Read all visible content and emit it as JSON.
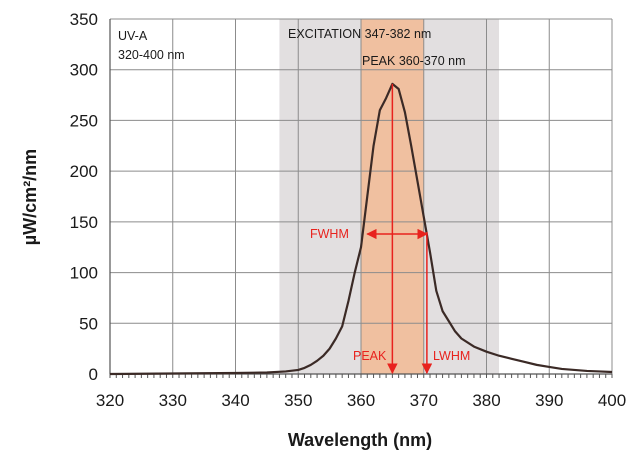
{
  "chart_data": {
    "type": "line",
    "xlabel": "Wavelength (nm)",
    "ylabel": "µW/cm²/nm",
    "xlim": [
      320,
      400
    ],
    "ylim": [
      0,
      350
    ],
    "x_ticks": [
      "320",
      "330",
      "340",
      "350",
      "360",
      "370",
      "380",
      "390",
      "400"
    ],
    "y_ticks": [
      "0",
      "50",
      "100",
      "150",
      "200",
      "250",
      "300",
      "350"
    ],
    "grid": true,
    "x_minor_ticks": true,
    "series": [
      {
        "color": "#3b2a26",
        "x": [
          320,
          330,
          340,
          345,
          348,
          350,
          351,
          352,
          353,
          354,
          355,
          356,
          357,
          358,
          359,
          360,
          361,
          362,
          363,
          364,
          365,
          366,
          367,
          368,
          369,
          370,
          371,
          372,
          373,
          374,
          375,
          376,
          378,
          380,
          382,
          384,
          386,
          388,
          390,
          392,
          394,
          396,
          398,
          400
        ],
        "y": [
          0,
          0.5,
          1,
          1.5,
          2.5,
          4,
          6,
          9,
          13,
          18,
          25,
          35,
          47,
          72,
          100,
          125,
          175,
          225,
          260,
          272,
          286,
          281,
          258,
          225,
          190,
          155,
          120,
          82,
          62,
          52,
          42,
          35,
          27,
          22,
          18,
          15,
          12,
          9,
          7,
          5,
          4,
          3,
          2.5,
          2
        ]
      }
    ],
    "bands": [
      {
        "from": 347,
        "to": 382,
        "color": "#e2dfe0",
        "label": "EXCITATION  347-382 nm"
      },
      {
        "from": 360,
        "to": 370,
        "color": "#f0c0a0",
        "label": "PEAK  360-370 nm"
      }
    ],
    "corner_note": {
      "line1": "UV-A",
      "line2": "320-400 nm"
    },
    "annotations": {
      "fwhm": {
        "label": "FWHM",
        "x_from": 361,
        "x_to": 370.5,
        "y": 138
      },
      "peak": {
        "label": "PEAK",
        "x": 365,
        "y_top": 286
      },
      "lwhm": {
        "label": "LWHM",
        "x": 370.5,
        "y_top": 140
      }
    },
    "annotation_color": "#e8221d"
  }
}
